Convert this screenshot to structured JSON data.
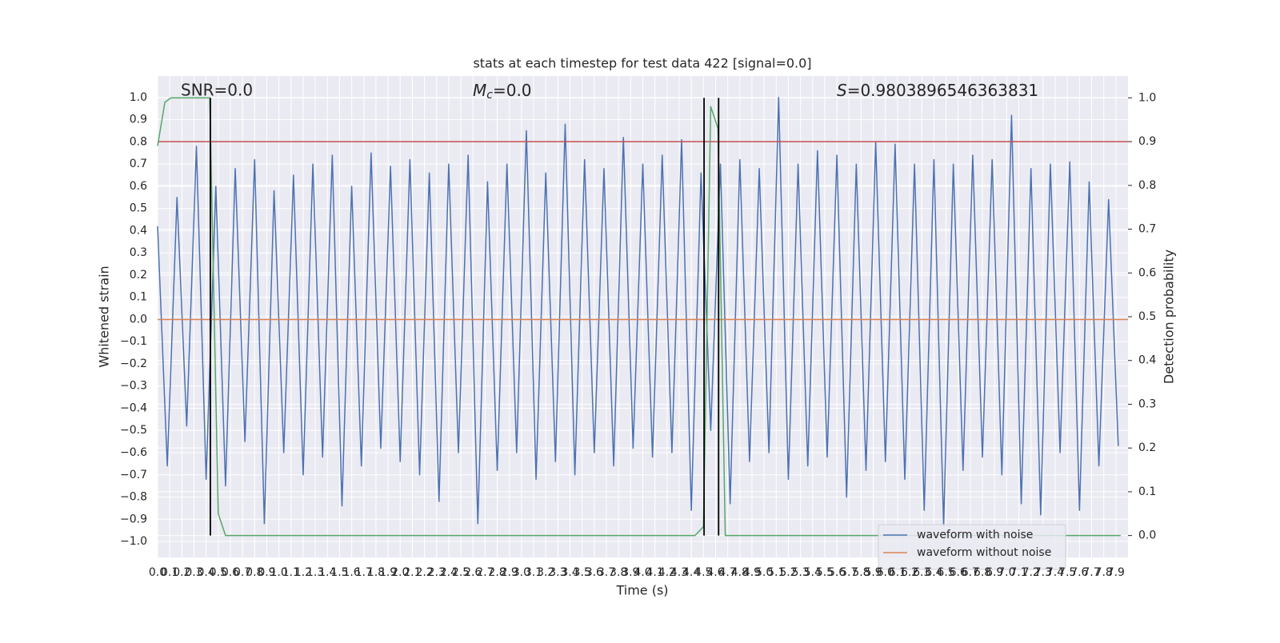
{
  "chart_data": {
    "type": "line",
    "title": "stats at each timestep for test data 422 [signal=0.0]",
    "x_label": "Time (s)",
    "y_label": "Whitened strain",
    "y2_label": "Detection probability",
    "annotations": [
      {
        "text": "SNR=0.0"
      },
      {
        "symbol": "M",
        "sub": "c",
        "text": "=0.0"
      },
      {
        "symbol": "S",
        "text": "=0.9803896546363831"
      }
    ],
    "xlim": [
      0,
      8
    ],
    "ylim": [
      -1.072,
      1.097
    ],
    "y2lim": [
      -0.05,
      1.05
    ],
    "grid": true,
    "legend": "lower right",
    "xticks": [
      {
        "value": 0,
        "label": "0.0"
      },
      0.1,
      0.2,
      0.3,
      0.4,
      0.5,
      0.6,
      0.7,
      0.8,
      0.9,
      {
        "value": 1,
        "label": "1.0"
      },
      1.1,
      1.2,
      1.3,
      1.4,
      1.5,
      1.6,
      1.7,
      1.8,
      1.9,
      {
        "value": 2,
        "label": "2.0"
      },
      2.1,
      2.2,
      2.3,
      2.4,
      2.5,
      2.6,
      2.7,
      2.8,
      2.9,
      {
        "value": 3,
        "label": "3.0"
      },
      3.1,
      3.2,
      3.3,
      3.4,
      3.5,
      3.6,
      3.7,
      3.8,
      3.9,
      {
        "value": 4,
        "label": "4.0"
      },
      4.1,
      4.2,
      4.3,
      4.4,
      4.5,
      4.6,
      4.7,
      4.8,
      4.9,
      {
        "value": 5,
        "label": "5.0"
      },
      5.1,
      5.2,
      5.3,
      5.4,
      5.5,
      5.6,
      5.7,
      5.8,
      5.9,
      {
        "value": 6,
        "label": "6.0"
      },
      6.1,
      6.2,
      6.3,
      6.4,
      6.5,
      6.6,
      6.7,
      6.8,
      6.9,
      {
        "value": 7,
        "label": "7.0"
      },
      7.1,
      7.2,
      7.3,
      7.4,
      7.5,
      7.6,
      7.7,
      7.8,
      7.9
    ],
    "yticks": [
      {
        "value": -1,
        "label": "−1.0"
      },
      {
        "value": -0.9,
        "label": "−0.9"
      },
      {
        "value": -0.8,
        "label": "−0.8"
      },
      {
        "value": -0.7,
        "label": "−0.7"
      },
      {
        "value": -0.6,
        "label": "−0.6"
      },
      {
        "value": -0.5,
        "label": "−0.5"
      },
      {
        "value": -0.4,
        "label": "−0.4"
      },
      {
        "value": -0.3,
        "label": "−0.3"
      },
      {
        "value": -0.2,
        "label": "−0.2"
      },
      {
        "value": -0.1,
        "label": "−0.1"
      },
      {
        "value": 0,
        "label": "0.0"
      },
      0.1,
      0.2,
      0.3,
      0.4,
      0.5,
      0.6,
      0.7,
      0.8,
      0.9,
      {
        "value": 1,
        "label": "1.0"
      }
    ],
    "y2ticks": [
      {
        "value": 0,
        "label": "0.0"
      },
      0.1,
      0.2,
      0.3,
      0.4,
      0.5,
      0.6,
      0.7,
      0.8,
      0.9,
      {
        "value": 1,
        "label": "1.0"
      }
    ],
    "series": [
      {
        "name": "waveform with noise",
        "color": "#4c72b0",
        "x": [
          0,
          0.08,
          0.16,
          0.24,
          0.32,
          0.4,
          0.48,
          0.56,
          0.64,
          0.72,
          0.8,
          0.88,
          0.96,
          1.04,
          1.12,
          1.2,
          1.28,
          1.36,
          1.44,
          1.52,
          1.6,
          1.68,
          1.76,
          1.84,
          1.92,
          2,
          2.08,
          2.16,
          2.24,
          2.32,
          2.4,
          2.48,
          2.56,
          2.64,
          2.72,
          2.8,
          2.88,
          2.96,
          3.04,
          3.12,
          3.2,
          3.28,
          3.36,
          3.44,
          3.52,
          3.6,
          3.68,
          3.76,
          3.84,
          3.92,
          4,
          4.08,
          4.16,
          4.24,
          4.32,
          4.4,
          4.48,
          4.56,
          4.64,
          4.72,
          4.8,
          4.88,
          4.96,
          5.04,
          5.12,
          5.2,
          5.28,
          5.36,
          5.44,
          5.52,
          5.6,
          5.68,
          5.76,
          5.84,
          5.92,
          6,
          6.08,
          6.16,
          6.24,
          6.32,
          6.4,
          6.48,
          6.56,
          6.64,
          6.72,
          6.8,
          6.88,
          6.96,
          7.04,
          7.12,
          7.2,
          7.28,
          7.36,
          7.44,
          7.52,
          7.6,
          7.68,
          7.76,
          7.84,
          7.92
        ],
        "values": [
          0.42,
          -0.66,
          0.55,
          -0.48,
          0.78,
          -0.72,
          0.6,
          -0.75,
          0.68,
          -0.55,
          0.72,
          -0.92,
          0.58,
          -0.6,
          0.65,
          -0.7,
          0.7,
          -0.62,
          0.74,
          -0.84,
          0.6,
          -0.66,
          0.75,
          -0.58,
          0.69,
          -0.64,
          0.72,
          -0.7,
          0.66,
          -0.82,
          0.7,
          -0.6,
          0.74,
          -0.92,
          0.62,
          -0.68,
          0.7,
          -0.6,
          0.85,
          -0.72,
          0.66,
          -0.64,
          0.88,
          -0.7,
          0.72,
          -0.6,
          0.68,
          -0.66,
          0.82,
          -0.58,
          0.7,
          -0.62,
          0.74,
          -0.6,
          0.81,
          -0.86,
          0.66,
          -0.5,
          0.7,
          -0.83,
          0.72,
          -0.64,
          0.68,
          -0.6,
          1.0,
          -0.72,
          0.7,
          -0.66,
          0.76,
          -0.62,
          0.74,
          -0.8,
          0.7,
          -0.68,
          0.8,
          -0.64,
          0.79,
          -0.72,
          0.7,
          -0.86,
          0.72,
          -0.93,
          0.7,
          -0.68,
          0.74,
          -0.62,
          0.72,
          -0.7,
          0.92,
          -0.83,
          0.68,
          -0.88,
          0.7,
          -0.6,
          0.71,
          -0.86,
          0.62,
          -0.66,
          0.54,
          -0.57
        ]
      },
      {
        "name": "waveform without noise",
        "color": "#dd8452",
        "x": [
          0,
          8
        ],
        "values": [
          0,
          0
        ]
      }
    ],
    "probability": {
      "color": "#55a868",
      "axis": "y2",
      "x": [
        0,
        0.06,
        0.11,
        0.43,
        0.5,
        0.56,
        4.43,
        4.5,
        4.56,
        4.62,
        4.68,
        7.94
      ],
      "values": [
        0.89,
        0.99,
        1.0,
        1.0,
        0.05,
        0.0,
        0.0,
        0.02,
        0.98,
        0.93,
        0.0,
        0.0
      ]
    },
    "hlines": [
      {
        "y": 0.9,
        "axis": "y2",
        "color": "#c44e52"
      }
    ],
    "vlines": [
      {
        "x": 0.435,
        "y": [
          0,
          1
        ],
        "axis": "y2",
        "color": "#000000"
      },
      {
        "x": 4.505,
        "y": [
          0,
          1
        ],
        "axis": "y2",
        "color": "#000000"
      },
      {
        "x": 4.625,
        "y": [
          0,
          1
        ],
        "axis": "y2",
        "color": "#000000"
      }
    ]
  }
}
